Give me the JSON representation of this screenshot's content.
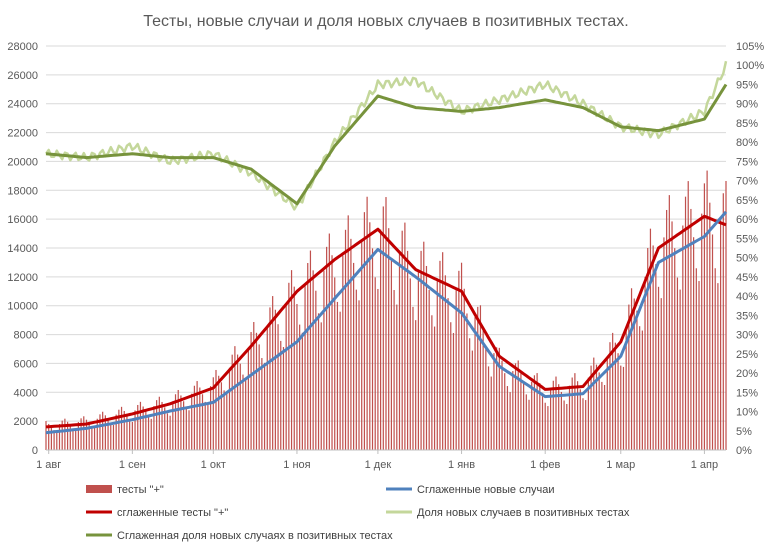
{
  "chart_data": {
    "type": "bar+line",
    "title": "Тесты, новые случаи и доля новых случаев в позитивных тестах.",
    "x_axis": {
      "type": "date",
      "start": "2020-07-31",
      "end": "2021-04-09",
      "ticks": [
        {
          "label": "1 авг",
          "date": "2020-08-01"
        },
        {
          "label": "1 сен",
          "date": "2020-09-01"
        },
        {
          "label": "1 окт",
          "date": "2020-10-01"
        },
        {
          "label": "1 ноя",
          "date": "2020-11-01"
        },
        {
          "label": "1 дек",
          "date": "2020-12-01"
        },
        {
          "label": "1 янв",
          "date": "2021-01-01"
        },
        {
          "label": "1 фев",
          "date": "2021-02-01"
        },
        {
          "label": "1 мар",
          "date": "2021-03-01"
        },
        {
          "label": "1 апр",
          "date": "2021-04-01"
        }
      ]
    },
    "y_left": {
      "min": 0,
      "max": 28000,
      "ticks": [
        "0",
        "2000",
        "4000",
        "6000",
        "8000",
        "10000",
        "12000",
        "14000",
        "16000",
        "18000",
        "20000",
        "22000",
        "24000",
        "26000",
        "28000"
      ]
    },
    "y_right": {
      "min": 0,
      "max": 105,
      "ticks": [
        "0%",
        "5%",
        "10%",
        "15%",
        "20%",
        "25%",
        "30%",
        "35%",
        "40%",
        "45%",
        "50%",
        "55%",
        "60%",
        "65%",
        "70%",
        "75%",
        "80%",
        "85%",
        "90%",
        "95%",
        "100%",
        "105%"
      ]
    },
    "legend": {
      "placement": "bottom",
      "items": [
        {
          "id": "bars",
          "label": "тесты \"+\"",
          "kind": "bar",
          "color": "#c0504d"
        },
        {
          "id": "smooth_cases",
          "label": "Сглаженные новые случаи",
          "kind": "line",
          "color": "#4f81bd"
        },
        {
          "id": "smooth_tests",
          "label": "сглаженные тесты \"+\"",
          "kind": "line",
          "color": "#c00000"
        },
        {
          "id": "share",
          "label": "Доля новых случаев в позитивных тестах",
          "kind": "line",
          "color": "#c4d79b"
        },
        {
          "id": "smooth_share",
          "label": "Сглаженная доля новых случаях в позитивных тестах",
          "kind": "line",
          "color": "#77933c"
        }
      ]
    },
    "bars_series": {
      "name": "тесты \"+\"",
      "axis": "left",
      "color": "#c0504d",
      "key_points": [
        {
          "date": "2020-07-31",
          "value": 1700
        },
        {
          "date": "2020-08-15",
          "value": 2000
        },
        {
          "date": "2020-09-01",
          "value": 2700
        },
        {
          "date": "2020-09-15",
          "value": 3300
        },
        {
          "date": "2020-10-01",
          "value": 4500
        },
        {
          "date": "2020-10-15",
          "value": 7300
        },
        {
          "date": "2020-11-01",
          "value": 11000
        },
        {
          "date": "2020-11-15",
          "value": 13000
        },
        {
          "date": "2020-12-01",
          "value": 15500
        },
        {
          "date": "2020-12-15",
          "value": 12500
        },
        {
          "date": "2021-01-01",
          "value": 11000
        },
        {
          "date": "2021-01-15",
          "value": 6000
        },
        {
          "date": "2021-02-01",
          "value": 4200
        },
        {
          "date": "2021-02-15",
          "value": 4600
        },
        {
          "date": "2021-03-01",
          "value": 7500
        },
        {
          "date": "2021-03-15",
          "value": 14500
        },
        {
          "date": "2021-04-01",
          "value": 16500
        },
        {
          "date": "2021-04-09",
          "value": 15800
        }
      ]
    },
    "series": [
      {
        "name": "сглаженные тесты \"+\"",
        "axis": "left",
        "color": "#c00000",
        "points": [
          {
            "date": "2020-07-31",
            "value": 1600
          },
          {
            "date": "2020-08-15",
            "value": 1800
          },
          {
            "date": "2020-09-01",
            "value": 2500
          },
          {
            "date": "2020-09-15",
            "value": 3200
          },
          {
            "date": "2020-10-01",
            "value": 4300
          },
          {
            "date": "2020-10-15",
            "value": 7200
          },
          {
            "date": "2020-11-01",
            "value": 11000
          },
          {
            "date": "2020-11-15",
            "value": 13200
          },
          {
            "date": "2020-12-01",
            "value": 15300
          },
          {
            "date": "2020-12-15",
            "value": 12500
          },
          {
            "date": "2021-01-01",
            "value": 11000
          },
          {
            "date": "2021-01-15",
            "value": 6500
          },
          {
            "date": "2021-02-01",
            "value": 4200
          },
          {
            "date": "2021-02-15",
            "value": 4400
          },
          {
            "date": "2021-03-01",
            "value": 7500
          },
          {
            "date": "2021-03-15",
            "value": 14000
          },
          {
            "date": "2021-04-01",
            "value": 16200
          },
          {
            "date": "2021-04-09",
            "value": 15600
          }
        ]
      },
      {
        "name": "Сглаженные новые случаи",
        "axis": "left",
        "color": "#4f81bd",
        "points": [
          {
            "date": "2020-07-31",
            "value": 1200
          },
          {
            "date": "2020-08-15",
            "value": 1500
          },
          {
            "date": "2020-09-01",
            "value": 2100
          },
          {
            "date": "2020-09-15",
            "value": 2700
          },
          {
            "date": "2020-10-01",
            "value": 3300
          },
          {
            "date": "2020-10-15",
            "value": 5200
          },
          {
            "date": "2020-11-01",
            "value": 7500
          },
          {
            "date": "2020-11-15",
            "value": 10500
          },
          {
            "date": "2020-12-01",
            "value": 13900
          },
          {
            "date": "2020-12-15",
            "value": 12000
          },
          {
            "date": "2021-01-01",
            "value": 9500
          },
          {
            "date": "2021-01-15",
            "value": 5800
          },
          {
            "date": "2021-02-01",
            "value": 3700
          },
          {
            "date": "2021-02-15",
            "value": 3900
          },
          {
            "date": "2021-03-01",
            "value": 6500
          },
          {
            "date": "2021-03-15",
            "value": 13000
          },
          {
            "date": "2021-04-01",
            "value": 14800
          },
          {
            "date": "2021-04-09",
            "value": 16500
          }
        ]
      },
      {
        "name": "Доля новых случаев в позитивных тестах",
        "axis": "right",
        "color": "#c4d79b",
        "points": [
          {
            "date": "2020-07-31",
            "value": 77
          },
          {
            "date": "2020-08-15",
            "value": 76
          },
          {
            "date": "2020-09-01",
            "value": 79
          },
          {
            "date": "2020-09-15",
            "value": 75
          },
          {
            "date": "2020-10-01",
            "value": 77
          },
          {
            "date": "2020-10-15",
            "value": 72
          },
          {
            "date": "2020-11-01",
            "value": 63
          },
          {
            "date": "2020-11-15",
            "value": 80
          },
          {
            "date": "2020-12-01",
            "value": 95
          },
          {
            "date": "2020-12-15",
            "value": 96
          },
          {
            "date": "2021-01-01",
            "value": 88
          },
          {
            "date": "2021-01-15",
            "value": 91
          },
          {
            "date": "2021-02-01",
            "value": 95
          },
          {
            "date": "2021-02-15",
            "value": 90
          },
          {
            "date": "2021-03-01",
            "value": 84
          },
          {
            "date": "2021-03-15",
            "value": 82
          },
          {
            "date": "2021-04-01",
            "value": 88
          },
          {
            "date": "2021-04-09",
            "value": 100
          }
        ]
      },
      {
        "name": "Сглаженная доля новых случаях в позитивных тестах",
        "axis": "right",
        "color": "#77933c",
        "points": [
          {
            "date": "2020-07-31",
            "value": 77
          },
          {
            "date": "2020-08-15",
            "value": 76
          },
          {
            "date": "2020-09-01",
            "value": 77
          },
          {
            "date": "2020-09-15",
            "value": 76
          },
          {
            "date": "2020-10-01",
            "value": 76
          },
          {
            "date": "2020-10-15",
            "value": 73
          },
          {
            "date": "2020-11-01",
            "value": 64
          },
          {
            "date": "2020-11-15",
            "value": 79
          },
          {
            "date": "2020-12-01",
            "value": 92
          },
          {
            "date": "2020-12-15",
            "value": 89
          },
          {
            "date": "2021-01-01",
            "value": 88
          },
          {
            "date": "2021-01-15",
            "value": 89
          },
          {
            "date": "2021-02-01",
            "value": 91
          },
          {
            "date": "2021-02-15",
            "value": 89
          },
          {
            "date": "2021-03-01",
            "value": 84
          },
          {
            "date": "2021-03-15",
            "value": 83
          },
          {
            "date": "2021-04-01",
            "value": 86
          },
          {
            "date": "2021-04-09",
            "value": 95
          }
        ]
      }
    ]
  }
}
